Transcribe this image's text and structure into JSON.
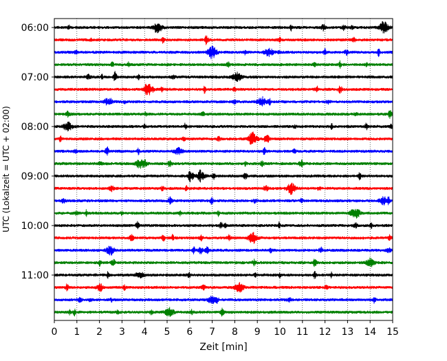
{
  "chart_data": {
    "type": "line",
    "subtype": "helicorder",
    "xlabel": "Zeit  [min]",
    "ylabel": "UTC (Lokalzeit = UTC + 02:00)",
    "xlim": [
      0,
      15
    ],
    "x_ticks": [
      0,
      1,
      2,
      3,
      4,
      5,
      6,
      7,
      8,
      9,
      10,
      11,
      12,
      13,
      14,
      15
    ],
    "x_tick_labels": [
      "0",
      "1",
      "2",
      "3",
      "4",
      "5",
      "6",
      "7",
      "8",
      "9",
      "10",
      "11",
      "12",
      "13",
      "14",
      "15"
    ],
    "y_tick_labels": [
      "06:00",
      "07:00",
      "08:00",
      "09:00",
      "10:00",
      "11:00"
    ],
    "y_tick_trace_index": [
      0,
      4,
      8,
      12,
      16,
      20
    ],
    "trace_count": 24,
    "trace_colors": [
      "#000000",
      "#ff0000",
      "#0000ff",
      "#008000"
    ],
    "grid": "vertical dotted lines at each minute",
    "legend": "none",
    "notable_events": [
      {
        "trace": 2,
        "minute": 7.0,
        "amplitude": 0.55
      },
      {
        "trace": 2,
        "minute": 9.5,
        "amplitude": 0.35
      },
      {
        "trace": 5,
        "minute": 4.2,
        "amplitude": 0.45
      },
      {
        "trace": 9,
        "minute": 8.8,
        "amplitude": 0.5
      },
      {
        "trace": 13,
        "minute": 10.5,
        "amplitude": 0.45
      },
      {
        "trace": 17,
        "minute": 8.8,
        "amplitude": 0.45
      },
      {
        "trace": 21,
        "minute": 8.2,
        "amplitude": 0.4
      },
      {
        "trace": 22,
        "minute": 7.0,
        "amplitude": 0.3
      },
      {
        "trace": 0,
        "minute": 14.6,
        "amplitude": 0.5
      },
      {
        "trace": 0,
        "minute": 4.6,
        "amplitude": 0.35
      },
      {
        "trace": 4,
        "minute": 8.1,
        "amplitude": 0.4
      },
      {
        "trace": 6,
        "minute": 9.2,
        "amplitude": 0.4
      },
      {
        "trace": 8,
        "minute": 0.6,
        "amplitude": 0.35
      },
      {
        "trace": 10,
        "minute": 5.5,
        "amplitude": 0.3
      },
      {
        "trace": 11,
        "minute": 3.8,
        "amplitude": 0.35
      },
      {
        "trace": 12,
        "minute": 6.5,
        "amplitude": 0.3
      },
      {
        "trace": 14,
        "minute": 14.6,
        "amplitude": 0.3
      },
      {
        "trace": 15,
        "minute": 13.3,
        "amplitude": 0.35
      },
      {
        "trace": 18,
        "minute": 2.5,
        "amplitude": 0.35
      },
      {
        "trace": 19,
        "minute": 14.0,
        "amplitude": 0.35
      },
      {
        "trace": 20,
        "minute": 3.8,
        "amplitude": 0.3
      },
      {
        "trace": 23,
        "minute": 5.1,
        "amplitude": 0.35
      }
    ]
  }
}
